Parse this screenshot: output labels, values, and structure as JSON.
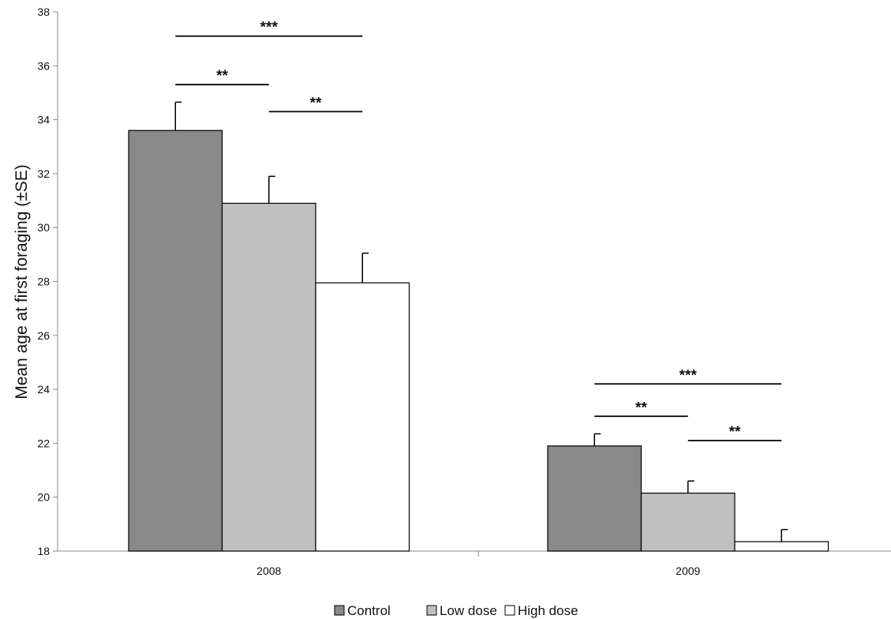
{
  "chart_data": {
    "type": "bar",
    "title": "",
    "xlabel": "",
    "ylabel": "Mean age at first foraging (±SE)",
    "ylim": [
      18,
      38
    ],
    "yticks": [
      18,
      20,
      22,
      24,
      26,
      28,
      30,
      32,
      34,
      36,
      38
    ],
    "categories": [
      "2008",
      "2009"
    ],
    "grid": false,
    "legend_position": "bottom-center",
    "series": [
      {
        "name": "Control",
        "color": "#898989",
        "values": [
          33.6,
          21.9
        ],
        "errors": [
          1.05,
          0.45
        ]
      },
      {
        "name": "Low dose",
        "color": "#c0c0c0",
        "values": [
          30.9,
          20.15
        ],
        "errors": [
          1.0,
          0.45
        ]
      },
      {
        "name": "High dose",
        "color": "#ffffff",
        "values": [
          27.95,
          18.35
        ],
        "errors": [
          1.1,
          0.45
        ]
      }
    ],
    "significance": [
      {
        "category": 0,
        "from": 0,
        "to": 2,
        "level": 37.1,
        "label": "***"
      },
      {
        "category": 0,
        "from": 0,
        "to": 1,
        "level": 35.3,
        "label": "**"
      },
      {
        "category": 0,
        "from": 1,
        "to": 2,
        "level": 34.3,
        "label": "**"
      },
      {
        "category": 1,
        "from": 0,
        "to": 2,
        "level": 24.2,
        "label": "***"
      },
      {
        "category": 1,
        "from": 0,
        "to": 1,
        "level": 23.0,
        "label": "**"
      },
      {
        "category": 1,
        "from": 1,
        "to": 2,
        "level": 22.1,
        "label": "**"
      }
    ]
  }
}
